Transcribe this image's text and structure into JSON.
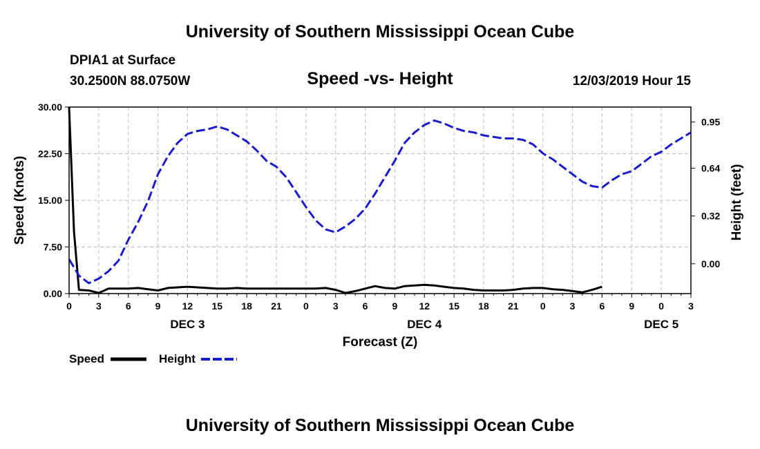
{
  "page": {
    "top_title": "University of Southern Mississippi Ocean Cube",
    "bottom_title": "University of Southern Mississippi Ocean Cube",
    "station_name": "DPIA1 at Surface",
    "station_coords": "30.2500N 88.0750W",
    "timestamp": "12/03/2019 Hour 15"
  },
  "legend": {
    "speed_label": "Speed",
    "height_label": "Height"
  },
  "colors": {
    "speed": "#000000",
    "height": "#1a1acc",
    "grid": "#bbbbbb"
  },
  "chart_data": {
    "type": "line",
    "title": "Speed -vs- Height",
    "xlabel": "Forecast (Z)",
    "ylabel": "Speed (Knots)",
    "y2label": "Height (feet)",
    "xlim": [
      0,
      63
    ],
    "ylim": [
      0,
      30
    ],
    "y2lim": [
      -0.2,
      1.05
    ],
    "y_ticks": [
      0,
      7.5,
      15,
      22.5,
      30
    ],
    "y_tick_labels": [
      "0.00",
      "7.50",
      "15.00",
      "22.50",
      "30.00"
    ],
    "y2_ticks": [
      0,
      0.32,
      0.64,
      0.95
    ],
    "y2_tick_labels": [
      "0.00",
      "0.32",
      "0.64",
      "0.95"
    ],
    "x_ticks": [
      0,
      3,
      6,
      9,
      12,
      15,
      18,
      21,
      24,
      27,
      30,
      33,
      36,
      39,
      42,
      45,
      48,
      51,
      54,
      57,
      60,
      63
    ],
    "x_tick_labels": [
      "0",
      "3",
      "6",
      "9",
      "12",
      "15",
      "18",
      "21",
      "0",
      "3",
      "6",
      "9",
      "12",
      "15",
      "18",
      "21",
      "0",
      "3",
      "6",
      "9",
      "0",
      "3"
    ],
    "day_labels": [
      {
        "x": 12,
        "label": "DEC 3"
      },
      {
        "x": 36,
        "label": "DEC 4"
      },
      {
        "x": 60,
        "label": "DEC 5"
      }
    ],
    "grid": true,
    "series": [
      {
        "name": "Speed",
        "axis": "left",
        "style": "solid",
        "x": [
          0,
          0.5,
          1,
          2,
          3,
          4,
          5,
          6,
          7,
          8,
          9,
          10,
          11,
          12,
          13,
          14,
          15,
          16,
          17,
          18,
          19,
          20,
          21,
          22,
          23,
          24,
          25,
          26,
          27,
          28,
          29,
          30,
          31,
          32,
          33,
          34,
          35,
          36,
          37,
          38,
          39,
          40,
          41,
          42,
          43,
          44,
          45,
          46,
          47,
          48,
          49,
          50,
          51,
          52,
          53,
          54
        ],
        "values": [
          30,
          10,
          0.6,
          0.5,
          0.1,
          0.8,
          0.8,
          0.8,
          0.9,
          0.7,
          0.5,
          0.9,
          1.0,
          1.1,
          1.0,
          0.9,
          0.8,
          0.8,
          0.9,
          0.8,
          0.8,
          0.8,
          0.8,
          0.8,
          0.8,
          0.8,
          0.8,
          0.9,
          0.6,
          0.1,
          0.4,
          0.8,
          1.2,
          0.9,
          0.8,
          1.2,
          1.3,
          1.4,
          1.3,
          1.1,
          0.9,
          0.8,
          0.6,
          0.5,
          0.5,
          0.5,
          0.6,
          0.8,
          0.9,
          0.9,
          0.7,
          0.6,
          0.4,
          0.2,
          0.6,
          1.1
        ]
      },
      {
        "name": "Height",
        "axis": "right",
        "style": "dashed",
        "x": [
          0,
          1,
          2,
          3,
          4,
          5,
          6,
          7,
          8,
          9,
          10,
          11,
          12,
          13,
          14,
          15,
          16,
          17,
          18,
          19,
          20,
          21,
          22,
          23,
          24,
          25,
          26,
          27,
          28,
          29,
          30,
          31,
          32,
          33,
          34,
          35,
          36,
          37,
          38,
          39,
          40,
          41,
          42,
          43,
          44,
          45,
          46,
          47,
          48,
          49,
          50,
          51,
          52,
          53,
          54,
          55,
          56,
          57,
          58,
          59,
          60,
          61,
          62,
          63
        ],
        "values": [
          0.03,
          -0.08,
          -0.13,
          -0.1,
          -0.05,
          0.02,
          0.16,
          0.28,
          0.42,
          0.6,
          0.72,
          0.81,
          0.87,
          0.89,
          0.9,
          0.92,
          0.9,
          0.86,
          0.82,
          0.76,
          0.69,
          0.65,
          0.58,
          0.48,
          0.38,
          0.29,
          0.23,
          0.21,
          0.25,
          0.3,
          0.37,
          0.47,
          0.58,
          0.69,
          0.81,
          0.88,
          0.93,
          0.96,
          0.94,
          0.91,
          0.89,
          0.88,
          0.86,
          0.85,
          0.84,
          0.84,
          0.83,
          0.8,
          0.74,
          0.7,
          0.65,
          0.6,
          0.55,
          0.52,
          0.51,
          0.56,
          0.6,
          0.62,
          0.67,
          0.72,
          0.75,
          0.8,
          0.84,
          0.88
        ]
      }
    ]
  }
}
